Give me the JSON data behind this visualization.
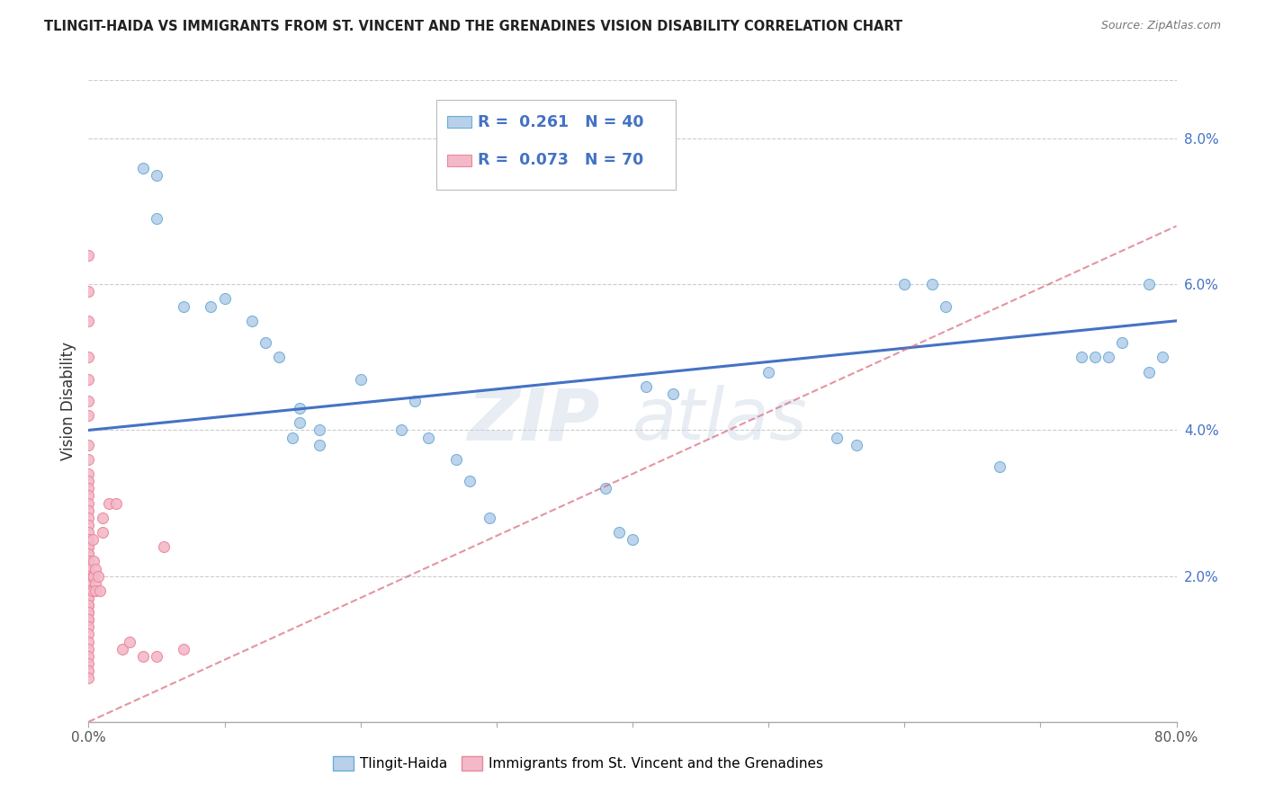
{
  "title": "TLINGIT-HAIDA VS IMMIGRANTS FROM ST. VINCENT AND THE GRENADINES VISION DISABILITY CORRELATION CHART",
  "source": "Source: ZipAtlas.com",
  "ylabel": "Vision Disability",
  "xlim": [
    0.0,
    0.8
  ],
  "ylim": [
    0.0,
    0.088
  ],
  "yticks": [
    0.02,
    0.04,
    0.06,
    0.08
  ],
  "ytick_labels": [
    "2.0%",
    "4.0%",
    "6.0%",
    "8.0%"
  ],
  "xticks": [
    0.0,
    0.1,
    0.2,
    0.3,
    0.4,
    0.5,
    0.6,
    0.7,
    0.8
  ],
  "xtick_labels": [
    "0.0%",
    "",
    "",
    "",
    "",
    "",
    "",
    "",
    "80.0%"
  ],
  "legend_r1": "R =  0.261   N = 40",
  "legend_r2": "R =  0.073   N = 70",
  "series1_color": "#b8d0ea",
  "series1_edge": "#6aaed6",
  "series2_color": "#f4b8c8",
  "series2_edge": "#e8889a",
  "trendline1_color": "#4472c4",
  "trendline2_color": "#d9697a",
  "series1_x": [
    0.04,
    0.05,
    0.05,
    0.07,
    0.09,
    0.1,
    0.12,
    0.13,
    0.14,
    0.15,
    0.155,
    0.155,
    0.17,
    0.17,
    0.2,
    0.23,
    0.24,
    0.25,
    0.27,
    0.28,
    0.295,
    0.38,
    0.39,
    0.4,
    0.41,
    0.43,
    0.5,
    0.55,
    0.565,
    0.6,
    0.62,
    0.63,
    0.67,
    0.73,
    0.74,
    0.75,
    0.76,
    0.78,
    0.78,
    0.79
  ],
  "series1_y": [
    0.076,
    0.075,
    0.069,
    0.057,
    0.057,
    0.058,
    0.055,
    0.052,
    0.05,
    0.039,
    0.041,
    0.043,
    0.038,
    0.04,
    0.047,
    0.04,
    0.044,
    0.039,
    0.036,
    0.033,
    0.028,
    0.032,
    0.026,
    0.025,
    0.046,
    0.045,
    0.048,
    0.039,
    0.038,
    0.06,
    0.06,
    0.057,
    0.035,
    0.05,
    0.05,
    0.05,
    0.052,
    0.06,
    0.048,
    0.05
  ],
  "series2_x": [
    0.0,
    0.0,
    0.0,
    0.0,
    0.0,
    0.0,
    0.0,
    0.0,
    0.0,
    0.0,
    0.0,
    0.0,
    0.0,
    0.0,
    0.0,
    0.0,
    0.0,
    0.0,
    0.0,
    0.0,
    0.0,
    0.0,
    0.0,
    0.0,
    0.0,
    0.0,
    0.0,
    0.0,
    0.0,
    0.0,
    0.0,
    0.0,
    0.0,
    0.0,
    0.0,
    0.0,
    0.0,
    0.0,
    0.0,
    0.0,
    0.0,
    0.0,
    0.0,
    0.0,
    0.0,
    0.0,
    0.0,
    0.0,
    0.0,
    0.0,
    0.003,
    0.003,
    0.003,
    0.004,
    0.004,
    0.005,
    0.005,
    0.005,
    0.007,
    0.008,
    0.01,
    0.01,
    0.015,
    0.02,
    0.025,
    0.03,
    0.04,
    0.05,
    0.055,
    0.07
  ],
  "series2_y": [
    0.064,
    0.059,
    0.055,
    0.05,
    0.047,
    0.044,
    0.042,
    0.038,
    0.036,
    0.034,
    0.033,
    0.032,
    0.031,
    0.03,
    0.029,
    0.028,
    0.027,
    0.026,
    0.025,
    0.024,
    0.023,
    0.022,
    0.021,
    0.02,
    0.019,
    0.018,
    0.017,
    0.016,
    0.015,
    0.014,
    0.025,
    0.024,
    0.023,
    0.022,
    0.021,
    0.02,
    0.019,
    0.018,
    0.017,
    0.016,
    0.015,
    0.014,
    0.013,
    0.012,
    0.011,
    0.01,
    0.009,
    0.008,
    0.007,
    0.006,
    0.025,
    0.02,
    0.018,
    0.022,
    0.02,
    0.021,
    0.019,
    0.018,
    0.02,
    0.018,
    0.028,
    0.026,
    0.03,
    0.03,
    0.01,
    0.011,
    0.009,
    0.009,
    0.024,
    0.01
  ],
  "watermark_part1": "ZIP",
  "watermark_part2": "atlas",
  "legend_label1": "Tlingit-Haida",
  "legend_label2": "Immigrants from St. Vincent and the Grenadines",
  "background_color": "#ffffff",
  "grid_color": "#cccccc",
  "trendline1_start_y": 0.04,
  "trendline1_end_y": 0.055,
  "trendline2_start_y": 0.0,
  "trendline2_end_y": 0.068
}
